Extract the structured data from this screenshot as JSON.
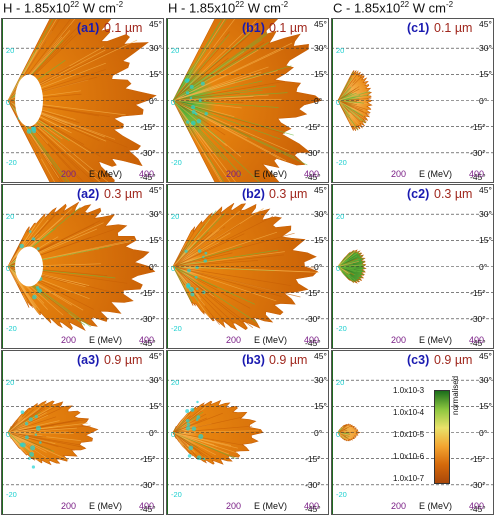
{
  "columns": [
    {
      "title_main": "H - 1.85x10",
      "title_exp": "22",
      "title_unit": " W cm",
      "title_unit_exp": "-2"
    },
    {
      "title_main": "H - 1.85x10",
      "title_exp": "22",
      "title_unit": " W cm",
      "title_unit_exp": "-2"
    },
    {
      "title_main": "C - 1.85x10",
      "title_exp": "22",
      "title_unit": " W cm",
      "title_unit_exp": "-2"
    }
  ],
  "panels": [
    {
      "id": "a1",
      "label": "(a1)",
      "thickness": "0.1 µm",
      "col": 0,
      "row": 0,
      "shape": "spread",
      "green": 0.25
    },
    {
      "id": "b1",
      "label": "(b1)",
      "thickness": "0.1 µm",
      "col": 1,
      "row": 0,
      "shape": "spread",
      "green": 0.55
    },
    {
      "id": "c1",
      "label": "(c1)",
      "thickness": "0.1 µm",
      "col": 2,
      "row": 0,
      "shape": "thin",
      "green": 0.35
    },
    {
      "id": "a2",
      "label": "(a2)",
      "thickness": "0.3 µm",
      "col": 0,
      "row": 1,
      "shape": "cone",
      "green": 0.2
    },
    {
      "id": "b2",
      "label": "(b2)",
      "thickness": "0.3 µm",
      "col": 1,
      "row": 1,
      "shape": "cone",
      "green": 0.2
    },
    {
      "id": "c2",
      "label": "(c2)",
      "thickness": "0.3 µm",
      "col": 2,
      "row": 1,
      "shape": "dome",
      "green": 0.9
    },
    {
      "id": "a3",
      "label": "(a3)",
      "thickness": "0.9 µm",
      "col": 0,
      "row": 2,
      "shape": "arrow",
      "green": 0.1
    },
    {
      "id": "b3",
      "label": "(b3)",
      "thickness": "0.9 µm",
      "col": 1,
      "row": 2,
      "shape": "arrow",
      "green": 0.1
    },
    {
      "id": "c3",
      "label": "(c3)",
      "thickness": "0.9 µm",
      "col": 2,
      "row": 2,
      "shape": "narrow",
      "green": 0.15
    }
  ],
  "angle_ticks": [
    "45°",
    "30°",
    "15°",
    "0°",
    "-15°",
    "-30°",
    "-45°"
  ],
  "energy_label": "E (MeV)",
  "energy_ticks": [
    "200",
    "400"
  ],
  "left_ticks": [
    "20",
    "0",
    "-20"
  ],
  "colorbar": {
    "title": "normalised",
    "ticks": [
      "1.0x10-3",
      "1.0x10-4",
      "1.0x10-5",
      "1.0x10-6",
      "1.0x10-7"
    ],
    "colors": [
      "#1b6e1b",
      "#8cc63f",
      "#e9e26a",
      "#f3a531",
      "#d5690b",
      "#a8470a"
    ]
  },
  "colors": {
    "orange": "#e8850f",
    "dark_orange": "#c85f06",
    "light_orange": "#f5b04a",
    "green": "#6ab83a",
    "dark_green": "#1f6b1f",
    "cyan": "#22d3d3",
    "panel_border": "#555555",
    "label_blue": "#1a1ab0",
    "label_red": "#a0281e",
    "energy_tick": "#7a1f86"
  }
}
